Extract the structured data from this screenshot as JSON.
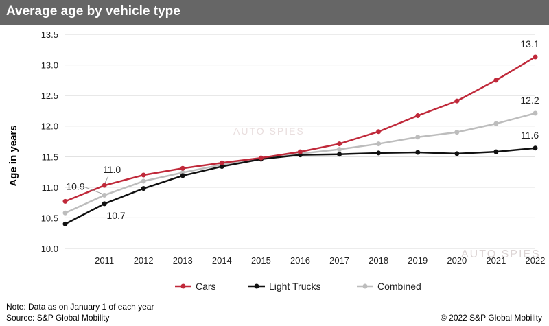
{
  "header": {
    "title": "Average age by vehicle type"
  },
  "watermark": {
    "text": "AUTO SPIES"
  },
  "footer": {
    "note": "Note: Data as on January 1 of each year",
    "source": "Source: S&P Global Mobility",
    "copyright": "© 2022 S&P Global Mobility"
  },
  "colors": {
    "cars": "#c0293a",
    "light_trucks": "#111111",
    "combined": "#bdbdbd",
    "title_bar": "#666666"
  },
  "chart_data": {
    "type": "line",
    "title": "Average age by vehicle type",
    "xlabel": "",
    "ylabel": "Age in years",
    "x": [
      2010,
      2011,
      2012,
      2013,
      2014,
      2015,
      2016,
      2017,
      2018,
      2019,
      2020,
      2021,
      2022
    ],
    "x_tick_labels": [
      "2011",
      "2012",
      "2013",
      "2014",
      "2015",
      "2016",
      "2017",
      "2018",
      "2019",
      "2020",
      "2021",
      "2022"
    ],
    "ylim": [
      10.0,
      13.5
    ],
    "yticks": [
      "10.0",
      "10.5",
      "11.0",
      "11.5",
      "12.0",
      "12.5",
      "13.0",
      "13.5"
    ],
    "grid": true,
    "legend_position": "bottom",
    "series": [
      {
        "name": "Cars",
        "color": "#c0293a",
        "values": [
          10.77,
          11.03,
          11.2,
          11.31,
          11.4,
          11.48,
          11.58,
          11.71,
          11.91,
          12.17,
          12.41,
          12.75,
          13.13
        ]
      },
      {
        "name": "Light Trucks",
        "color": "#111111",
        "values": [
          10.4,
          10.73,
          10.98,
          11.19,
          11.34,
          11.46,
          11.53,
          11.54,
          11.56,
          11.57,
          11.55,
          11.58,
          11.64
        ]
      },
      {
        "name": "Combined",
        "color": "#bdbdbd",
        "values": [
          10.58,
          10.87,
          11.1,
          11.24,
          11.37,
          11.47,
          11.55,
          11.62,
          11.71,
          11.82,
          11.9,
          12.04,
          12.21
        ]
      }
    ],
    "data_labels": [
      "10.9",
      "11.0",
      "10.7",
      "13.1",
      "12.2",
      "11.6"
    ]
  }
}
